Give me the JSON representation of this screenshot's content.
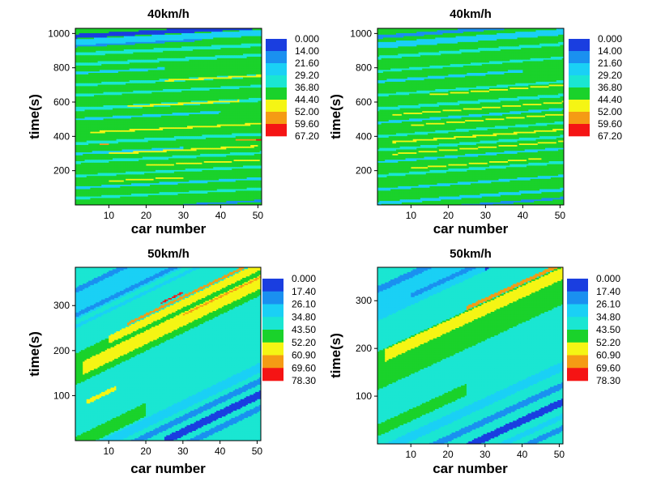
{
  "chart_data": [
    {
      "type": "heatmap",
      "title": "40km/h",
      "xlabel": "car number",
      "ylabel": "time(s)",
      "xlim": [
        1,
        51
      ],
      "ylim": [
        0,
        1030
      ],
      "xticks": [
        10,
        20,
        30,
        40,
        50
      ],
      "yticks": [
        200,
        400,
        600,
        800,
        1000
      ],
      "legend_levels": [
        "0.000",
        "14.00",
        "21.60",
        "29.20",
        "36.80",
        "44.40",
        "52.00",
        "59.60",
        "67.20"
      ],
      "legend_placement": "right",
      "pattern": {
        "slope": 1.1,
        "base_level": 4,
        "bands": [
          {
            "offset": 930,
            "width": 18,
            "level": 1,
            "x_from": 1,
            "x_to": 35
          },
          {
            "offset": 985,
            "width": 25,
            "level": 0,
            "x_from": 1,
            "x_to": 51
          },
          {
            "offset": 950,
            "width": 35,
            "level": 2,
            "x_from": 1,
            "x_to": 51
          },
          {
            "offset": 880,
            "width": 20,
            "level": 3,
            "x_from": 1,
            "x_to": 51
          },
          {
            "offset": 820,
            "width": 18,
            "level": 3,
            "x_from": 1,
            "x_to": 51
          },
          {
            "offset": 770,
            "width": 14,
            "level": 2,
            "x_from": 1,
            "x_to": 25
          },
          {
            "offset": 700,
            "width": 16,
            "level": 3,
            "x_from": 1,
            "x_to": 51
          },
          {
            "offset": 640,
            "width": 14,
            "level": 3,
            "x_from": 1,
            "x_to": 51
          },
          {
            "offset": 560,
            "width": 20,
            "level": 3,
            "x_from": 1,
            "x_to": 51
          },
          {
            "offset": 500,
            "width": 14,
            "level": 2,
            "x_from": 1,
            "x_to": 40
          },
          {
            "offset": 360,
            "width": 18,
            "level": 3,
            "x_from": 1,
            "x_to": 51
          },
          {
            "offset": 300,
            "width": 14,
            "level": 2,
            "x_from": 1,
            "x_to": 30
          },
          {
            "offset": 250,
            "width": 16,
            "level": 3,
            "x_from": 1,
            "x_to": 51
          },
          {
            "offset": 170,
            "width": 14,
            "level": 3,
            "x_from": 1,
            "x_to": 51
          },
          {
            "offset": 100,
            "width": 14,
            "level": 2,
            "x_from": 1,
            "x_to": 51
          },
          {
            "offset": 40,
            "width": 14,
            "level": 3,
            "x_from": 1,
            "x_to": 51
          },
          {
            "offset": -30,
            "width": 12,
            "level": 1,
            "x_from": 30,
            "x_to": 51
          },
          {
            "offset": 700,
            "width": 10,
            "level": 5,
            "x_from": 25,
            "x_to": 51
          },
          {
            "offset": 560,
            "width": 10,
            "level": 5,
            "x_from": 15,
            "x_to": 45
          },
          {
            "offset": 420,
            "width": 10,
            "level": 5,
            "x_from": 5,
            "x_to": 51
          },
          {
            "offset": 290,
            "width": 10,
            "level": 5,
            "x_from": 10,
            "x_to": 50
          },
          {
            "offset": 210,
            "width": 8,
            "level": 5,
            "x_from": 20,
            "x_to": 51
          },
          {
            "offset": 130,
            "width": 8,
            "level": 5,
            "x_from": 10,
            "x_to": 30
          },
          {
            "offset": 330,
            "width": 8,
            "level": 6,
            "x_from": 44,
            "x_to": 51
          },
          {
            "offset": 325,
            "width": 5,
            "level": 7,
            "x_from": 47,
            "x_to": 51
          },
          {
            "offset": 345,
            "width": 6,
            "level": 6,
            "x_from": 5,
            "x_to": 10
          }
        ]
      }
    },
    {
      "type": "heatmap",
      "title": "40km/h",
      "xlabel": "car number",
      "ylabel": "time(s)",
      "xlim": [
        1,
        51
      ],
      "ylim": [
        0,
        1030
      ],
      "xticks": [
        10,
        20,
        30,
        40,
        50
      ],
      "yticks": [
        200,
        400,
        600,
        800,
        1000
      ],
      "legend_levels": [
        "0.000",
        "14.00",
        "21.60",
        "29.20",
        "36.80",
        "44.40",
        "52.00",
        "59.60",
        "67.20"
      ],
      "legend_placement": "right",
      "pattern": {
        "slope": 1.6,
        "base_level": 4,
        "bands": [
          {
            "offset": 980,
            "width": 20,
            "level": 1,
            "x_from": 1,
            "x_to": 51
          },
          {
            "offset": 930,
            "width": 35,
            "level": 2,
            "x_from": 1,
            "x_to": 51
          },
          {
            "offset": 860,
            "width": 18,
            "level": 3,
            "x_from": 1,
            "x_to": 51
          },
          {
            "offset": 780,
            "width": 14,
            "level": 3,
            "x_from": 1,
            "x_to": 51
          },
          {
            "offset": 720,
            "width": 16,
            "level": 2,
            "x_from": 1,
            "x_to": 40
          },
          {
            "offset": 640,
            "width": 14,
            "level": 3,
            "x_from": 1,
            "x_to": 51
          },
          {
            "offset": 560,
            "width": 18,
            "level": 3,
            "x_from": 1,
            "x_to": 51
          },
          {
            "offset": 480,
            "width": 14,
            "level": 2,
            "x_from": 1,
            "x_to": 51
          },
          {
            "offset": 400,
            "width": 14,
            "level": 3,
            "x_from": 1,
            "x_to": 51
          },
          {
            "offset": 320,
            "width": 16,
            "level": 3,
            "x_from": 1,
            "x_to": 51
          },
          {
            "offset": 250,
            "width": 14,
            "level": 2,
            "x_from": 1,
            "x_to": 51
          },
          {
            "offset": 170,
            "width": 16,
            "level": 3,
            "x_from": 1,
            "x_to": 51
          },
          {
            "offset": 90,
            "width": 14,
            "level": 2,
            "x_from": 1,
            "x_to": 51
          },
          {
            "offset": 10,
            "width": 18,
            "level": 2,
            "x_from": 1,
            "x_to": 51
          },
          {
            "offset": -40,
            "width": 14,
            "level": 1,
            "x_from": 1,
            "x_to": 51
          },
          {
            "offset": -110,
            "width": 10,
            "level": 0,
            "x_from": 20,
            "x_to": 51
          },
          {
            "offset": 620,
            "width": 8,
            "level": 5,
            "x_from": 15,
            "x_to": 51
          },
          {
            "offset": 520,
            "width": 8,
            "level": 5,
            "x_from": 5,
            "x_to": 51
          },
          {
            "offset": 450,
            "width": 8,
            "level": 5,
            "x_from": 10,
            "x_to": 51
          },
          {
            "offset": 360,
            "width": 10,
            "level": 5,
            "x_from": 5,
            "x_to": 51
          },
          {
            "offset": 290,
            "width": 8,
            "level": 5,
            "x_from": 5,
            "x_to": 51
          },
          {
            "offset": 200,
            "width": 8,
            "level": 5,
            "x_from": 10,
            "x_to": 45
          }
        ]
      }
    },
    {
      "type": "heatmap",
      "title": "50km/h",
      "xlabel": "car number",
      "ylabel": "time(s)",
      "xlim": [
        1,
        51
      ],
      "ylim": [
        0,
        385
      ],
      "xticks": [
        10,
        20,
        30,
        40,
        50
      ],
      "yticks": [
        100,
        200,
        300
      ],
      "legend_levels": [
        "0.000",
        "17.40",
        "26.10",
        "34.80",
        "43.50",
        "52.20",
        "60.90",
        "69.60",
        "78.30"
      ],
      "legend_placement": "right",
      "pattern": {
        "slope": 4.0,
        "base_level": 3,
        "bands": [
          {
            "offset": 300,
            "width": 70,
            "level": 2,
            "x_from": 1,
            "x_to": 51
          },
          {
            "offset": 330,
            "width": 12,
            "level": 1,
            "x_from": 1,
            "x_to": 51
          },
          {
            "offset": 275,
            "width": 10,
            "level": 1,
            "x_from": 1,
            "x_to": 51
          },
          {
            "offset": 250,
            "width": 8,
            "level": 2,
            "x_from": 1,
            "x_to": 51
          },
          {
            "offset": 155,
            "width": 70,
            "level": 4,
            "x_from": 1,
            "x_to": 51
          },
          {
            "offset": 150,
            "width": 30,
            "level": 5,
            "x_from": 3,
            "x_to": 51
          },
          {
            "offset": 185,
            "width": 18,
            "level": 5,
            "x_from": 10,
            "x_to": 51
          },
          {
            "offset": 200,
            "width": 6,
            "level": 6,
            "x_from": 15,
            "x_to": 51
          },
          {
            "offset": 160,
            "width": 4,
            "level": 6,
            "x_from": 30,
            "x_to": 51
          },
          {
            "offset": 210,
            "width": 4,
            "level": 7,
            "x_from": 24,
            "x_to": 30
          },
          {
            "offset": 55,
            "width": 60,
            "level": 3,
            "x_from": 1,
            "x_to": 51
          },
          {
            "offset": 70,
            "width": 10,
            "level": 5,
            "x_from": 4,
            "x_to": 12
          },
          {
            "offset": -10,
            "width": 30,
            "level": 4,
            "x_from": 1,
            "x_to": 20
          },
          {
            "offset": -40,
            "width": 22,
            "level": 2,
            "x_from": 1,
            "x_to": 51
          },
          {
            "offset": -70,
            "width": 14,
            "level": 1,
            "x_from": 15,
            "x_to": 51
          },
          {
            "offset": -100,
            "width": 18,
            "level": 0,
            "x_from": 25,
            "x_to": 51
          },
          {
            "offset": -130,
            "width": 14,
            "level": 1,
            "x_from": 30,
            "x_to": 51
          }
        ]
      }
    },
    {
      "type": "heatmap",
      "title": "50km/h",
      "xlabel": "car number",
      "ylabel": "time(s)",
      "xlim": [
        1,
        51
      ],
      "ylim": [
        0,
        370
      ],
      "xticks": [
        10,
        20,
        30,
        40,
        50
      ],
      "yticks": [
        100,
        200,
        300
      ],
      "legend_levels": [
        "0.000",
        "17.40",
        "26.10",
        "34.80",
        "43.50",
        "52.20",
        "60.90",
        "69.60",
        "78.30"
      ],
      "legend_placement": "right",
      "pattern": {
        "slope": 3.6,
        "base_level": 3,
        "bands": [
          {
            "offset": 285,
            "width": 60,
            "level": 2,
            "x_from": 1,
            "x_to": 51
          },
          {
            "offset": 320,
            "width": 14,
            "level": 1,
            "x_from": 1,
            "x_to": 51
          },
          {
            "offset": 275,
            "width": 10,
            "level": 1,
            "x_from": 10,
            "x_to": 51
          },
          {
            "offset": 260,
            "width": 8,
            "level": 0,
            "x_from": 30,
            "x_to": 51
          },
          {
            "offset": 150,
            "width": 80,
            "level": 4,
            "x_from": 1,
            "x_to": 51
          },
          {
            "offset": 175,
            "width": 25,
            "level": 5,
            "x_from": 3,
            "x_to": 51
          },
          {
            "offset": 195,
            "width": 8,
            "level": 6,
            "x_from": 25,
            "x_to": 51
          },
          {
            "offset": 60,
            "width": 45,
            "level": 3,
            "x_from": 1,
            "x_to": 51
          },
          {
            "offset": 25,
            "width": 25,
            "level": 4,
            "x_from": 1,
            "x_to": 25
          },
          {
            "offset": -20,
            "width": 20,
            "level": 2,
            "x_from": 1,
            "x_to": 51
          },
          {
            "offset": -60,
            "width": 14,
            "level": 1,
            "x_from": 1,
            "x_to": 51
          },
          {
            "offset": -95,
            "width": 16,
            "level": 0,
            "x_from": 25,
            "x_to": 51
          },
          {
            "offset": -125,
            "width": 12,
            "level": 2,
            "x_from": 20,
            "x_to": 51
          },
          {
            "offset": -150,
            "width": 12,
            "level": 1,
            "x_from": 30,
            "x_to": 51
          }
        ]
      }
    }
  ],
  "level_colors": [
    "#1a3ee0",
    "#1a90f0",
    "#1ad0f5",
    "#1ae6d2",
    "#1ad22b",
    "#f5f514",
    "#f59b14",
    "#f51414"
  ]
}
